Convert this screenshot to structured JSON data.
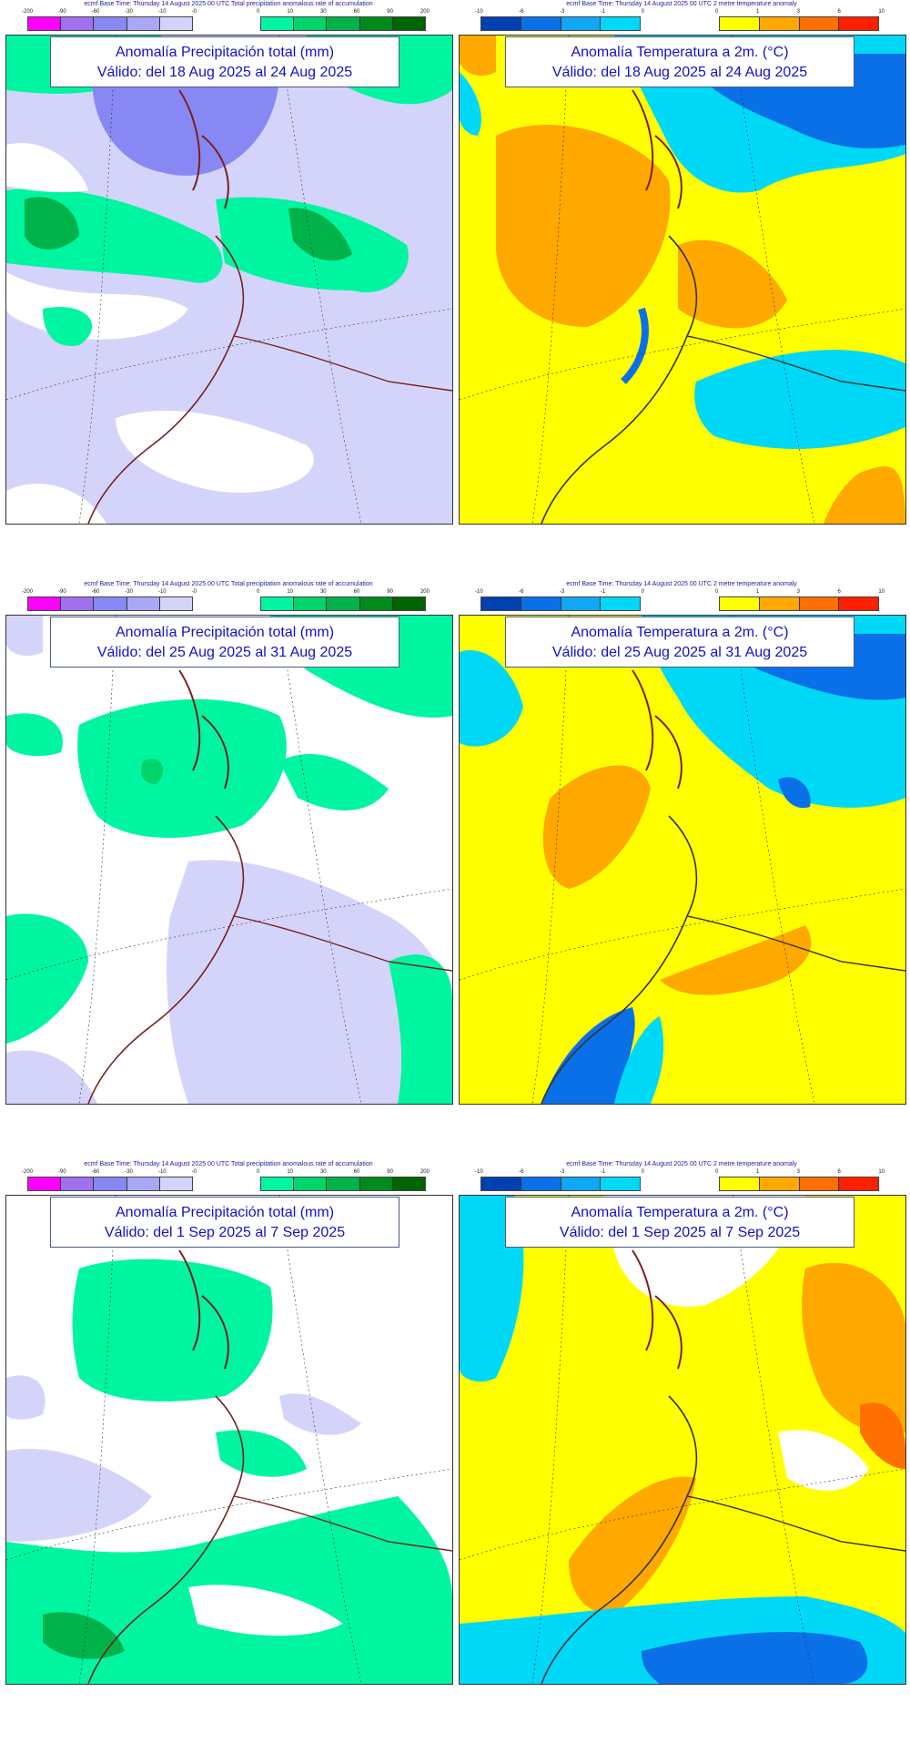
{
  "colors": {
    "precip_neg": [
      "#ff00ff",
      "#a070ee",
      "#8888f4",
      "#a8a8f6",
      "#d4d4fb"
    ],
    "precip_pos": [
      "#00f5a0",
      "#00d46a",
      "#00b24a",
      "#008a1c",
      "#006400"
    ],
    "temp_cold": [
      "#0040b0",
      "#0a70e8",
      "#10a8f4",
      "#00d8f8"
    ],
    "temp_warm": [
      "#ffff00",
      "#ffa800",
      "#ff7000",
      "#ff2000"
    ],
    "coast": "#7a1f1f",
    "frame": "#4a5a8a",
    "title_text": "#1111cc"
  },
  "legend": {
    "precip_header": "ecmf  Base Time: Thursday 14 August 2025 00 UTC Total precipitation anomalous rate of accumulation",
    "temp_header": "ecmf  Base Time: Thursday 14 August 2025 00 UTC 2 metre temperature anomaly",
    "precip_neg_ticks": [
      "-200",
      "-90",
      "-60",
      "-30",
      "-10",
      "-0"
    ],
    "precip_pos_ticks": [
      "0",
      "10",
      "30",
      "60",
      "90",
      "200"
    ],
    "temp_cold_ticks": [
      "-10",
      "-6",
      "-3",
      "-1",
      "0"
    ],
    "temp_warm_ticks": [
      "0",
      "1",
      "3",
      "6",
      "10"
    ]
  },
  "panels": [
    {
      "title": "Anomalía Precipitación total (mm)",
      "valid": "Válido: del 18 Aug 2025 al 24 Aug 2025"
    },
    {
      "title": "Anomalía Temperatura a 2m. (°C)",
      "valid": "Válido: del 18 Aug 2025 al 24 Aug 2025"
    },
    {
      "title": "Anomalía Precipitación total (mm)",
      "valid": "Válido: del 25 Aug 2025 al 31 Aug 2025"
    },
    {
      "title": "Anomalía Temperatura a 2m. (°C)",
      "valid": "Válido: del 25 Aug 2025 al 31 Aug 2025"
    },
    {
      "title": "Anomalía Precipitación total (mm)",
      "valid": "Válido: del 1 Sep 2025 al 7 Sep 2025"
    },
    {
      "title": "Anomalía Temperatura a 2m. (°C)",
      "valid": "Válido: del 1 Sep 2025 al 7 Sep 2025"
    }
  ]
}
